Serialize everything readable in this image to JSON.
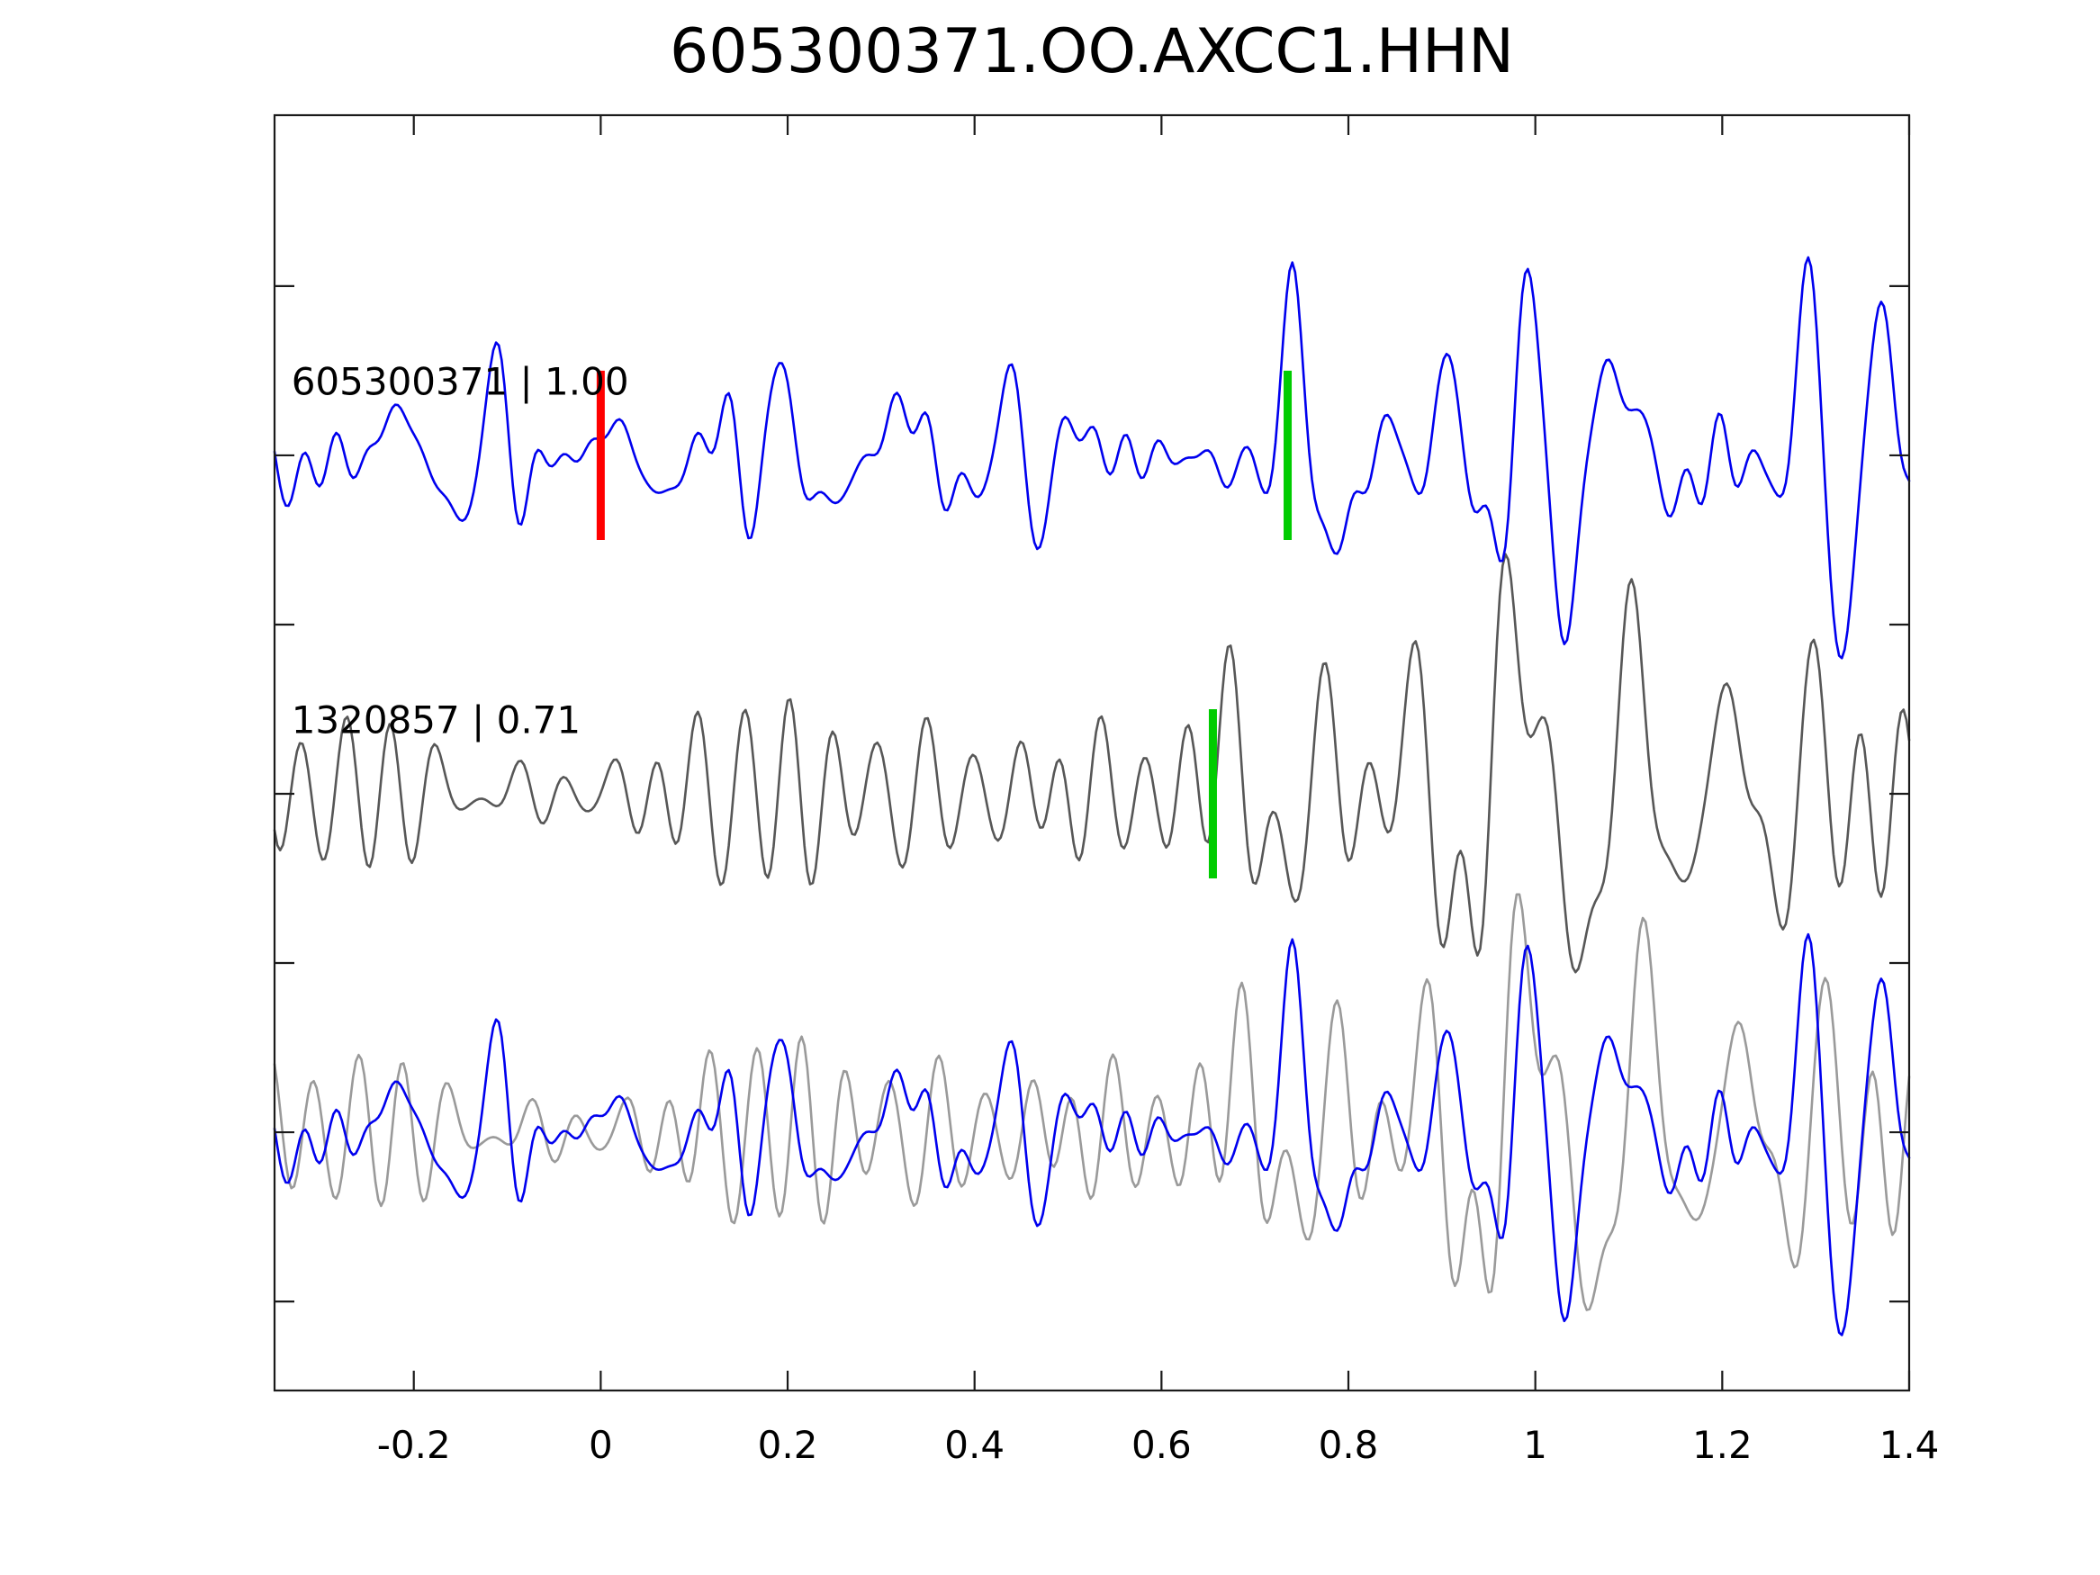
{
  "title": "605300371.OO.AXCC1.HHN",
  "colors": {
    "background": "#ffffff",
    "axis": "#1a1a1a",
    "text": "#000000",
    "template_trace": "#0000ee",
    "detection_trace": "#575757",
    "overlay_detection_trace": "#9a9a9a",
    "template_pick_marker": "#ff0000",
    "detection_pick_marker": "#00cc00"
  },
  "chart_data": {
    "type": "line",
    "title": "605300371.OO.AXCC1.HHN",
    "xlabel": "",
    "ylabel": "",
    "xlim": [
      -0.349,
      1.4
    ],
    "ylim": [
      -2.763,
      1.005
    ],
    "x_ticks": [
      -0.2,
      0,
      0.2,
      0.4,
      0.6,
      0.8,
      1,
      1.2,
      1.4
    ],
    "x_tick_labels": [
      "-0.2",
      "0",
      "0.2",
      "0.4",
      "0.6",
      "0.8",
      "1",
      "1.2",
      "1.4"
    ],
    "y_ticks": [
      0.5,
      0,
      -0.5,
      -1,
      -1.5,
      -2,
      -2.5
    ],
    "y_tick_labels": [],
    "grid": false,
    "legend": null,
    "sample_dx": 0.003,
    "tick_direction": "in",
    "trace_labels": [
      {
        "text": "605300371 | 1.00",
        "x": -0.331,
        "y": 0.18
      },
      {
        "text": "1320857 | 0.71",
        "x": -0.331,
        "y": -0.82
      }
    ],
    "markers": [
      {
        "name": "template-pick-marker",
        "x": 0.0,
        "trace_offset": 0,
        "half_height": 0.25,
        "color_key": "template_pick_marker"
      },
      {
        "name": "template-detection-time-marker",
        "x": 0.735,
        "trace_offset": 0,
        "half_height": 0.25,
        "color_key": "detection_pick_marker"
      },
      {
        "name": "detection-pick-marker",
        "x": 0.655,
        "trace_offset": -1,
        "half_height": 0.25,
        "color_key": "detection_pick_marker"
      }
    ],
    "traces": [
      {
        "name": "detection",
        "label": "1320857 | 0.71",
        "color_key": "detection_trace",
        "offset": -1,
        "bands": [
          {
            "components": [
              [
                21.0,
                0.145,
                0.0
              ],
              [
                19.3,
                0.065,
                2.4
              ],
              [
                23.4,
                0.045,
                4.0
              ],
              [
                11.2,
                0.035,
                1.2
              ],
              [
                15.8,
                0.04,
                5.1
              ],
              [
                27.9,
                0.022,
                3.3
              ]
            ],
            "envelope": [
              [
                -0.35,
                0.9
              ],
              [
                0.1,
                1.0
              ],
              [
                0.5,
                1.15
              ],
              [
                0.75,
                1.25
              ],
              [
                1.4,
                1.1
              ]
            ]
          },
          {
            "components": [
              [
                9.1,
                0.24,
                1.82
              ],
              [
                7.0,
                0.13,
                2.7
              ],
              [
                11.8,
                0.11,
                0.4
              ],
              [
                5.6,
                0.07,
                4.3
              ],
              [
                14.6,
                0.05,
                1.9
              ]
            ],
            "envelope": [
              [
                -0.35,
                0.0
              ],
              [
                0.6,
                0.0
              ],
              [
                0.66,
                0.7
              ],
              [
                0.74,
                1.1
              ],
              [
                0.88,
                0.9
              ],
              [
                1.0,
                1.45
              ],
              [
                1.17,
                1.35
              ],
              [
                1.3,
                1.2
              ],
              [
                1.4,
                0.9
              ]
            ]
          }
        ]
      },
      {
        "name": "template",
        "label": "605300371 | 1.00",
        "color_key": "template_trace",
        "offset": 0,
        "bands": [
          {
            "components": [
              [
                9.4,
                0.085,
                1.7
              ],
              [
                12.7,
                0.075,
                4.9
              ],
              [
                16.3,
                0.065,
                0.6
              ],
              [
                19.8,
                0.055,
                3.2
              ],
              [
                23.6,
                0.042,
                5.5
              ],
              [
                28.4,
                0.028,
                2.1
              ],
              [
                33.1,
                0.018,
                4.1
              ],
              [
                7.1,
                0.052,
                0.2
              ],
              [
                5.3,
                0.04,
                2.8
              ]
            ],
            "envelope": [
              [
                -0.35,
                0.95
              ],
              [
                0.3,
                1.05
              ],
              [
                0.7,
                1.0
              ],
              [
                0.78,
                1.3
              ],
              [
                1.4,
                1.2
              ]
            ]
          },
          {
            "components": [
              [
                10.6,
                0.2,
                4.03
              ],
              [
                8.2,
                0.12,
                1.1
              ],
              [
                13.4,
                0.09,
                5.7
              ],
              [
                6.3,
                0.06,
                2.5
              ],
              [
                17.9,
                0.05,
                0.8
              ]
            ],
            "envelope": [
              [
                -0.35,
                0.0
              ],
              [
                0.7,
                0.0
              ],
              [
                0.74,
                0.9
              ],
              [
                0.79,
                1.35
              ],
              [
                0.9,
                1.0
              ],
              [
                1.0,
                1.35
              ],
              [
                1.1,
                1.15
              ],
              [
                1.25,
                1.0
              ],
              [
                1.4,
                1.15
              ]
            ]
          }
        ]
      },
      {
        "name": "overlay-detection",
        "label": "",
        "color_key": "overlay_detection_trace",
        "offset": -2,
        "source": "detection",
        "x_shift": 0.013
      },
      {
        "name": "overlay-template",
        "label": "",
        "color_key": "template_trace",
        "offset": -2,
        "source": "template",
        "x_shift": 0.0
      }
    ]
  }
}
